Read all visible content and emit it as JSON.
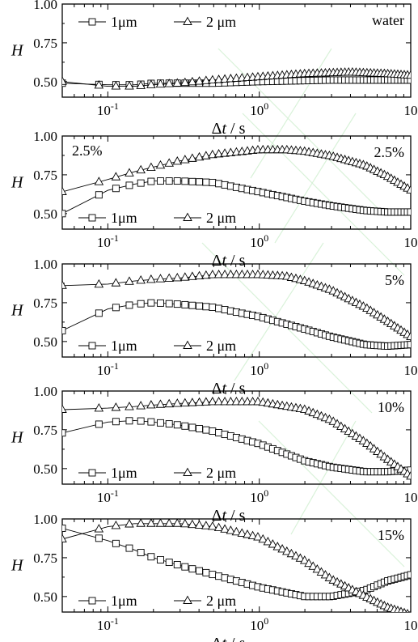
{
  "chart_data": [
    {
      "type": "scatter",
      "xscale": "log",
      "xlim": [
        0.05,
        10
      ],
      "ylim": [
        0.4,
        1.0
      ],
      "xlabel": "Δt / s",
      "ylabel": "H",
      "x_ticks": [
        "10-1",
        "100",
        "10"
      ],
      "y_ticks": [
        "0.50",
        "0.75",
        "1.00"
      ],
      "tags": [
        "water"
      ],
      "legend_position": "top-left",
      "legend_line": "top",
      "series": [
        {
          "name": "1μm",
          "marker": "square",
          "points": [
            [
              0.05,
              0.49
            ],
            [
              0.1,
              0.48
            ],
            [
              0.15,
              0.48
            ],
            [
              0.2,
              0.49
            ],
            [
              0.5,
              0.49
            ],
            [
              1,
              0.5
            ],
            [
              3,
              0.51
            ],
            [
              10,
              0.51
            ]
          ]
        },
        {
          "name": "2 μm",
          "marker": "triangle",
          "points": [
            [
              0.05,
              0.5
            ],
            [
              0.1,
              0.47
            ],
            [
              0.15,
              0.47
            ],
            [
              0.2,
              0.48
            ],
            [
              0.3,
              0.49
            ],
            [
              0.5,
              0.51
            ],
            [
              1,
              0.53
            ],
            [
              2,
              0.55
            ],
            [
              4,
              0.56
            ],
            [
              7,
              0.55
            ],
            [
              10,
              0.54
            ]
          ]
        }
      ]
    },
    {
      "type": "scatter",
      "xscale": "log",
      "xlim": [
        0.05,
        10
      ],
      "ylim": [
        0.4,
        1.0
      ],
      "xlabel": "Δt / s",
      "ylabel": "H",
      "x_ticks": [
        "10-1",
        "100",
        "10"
      ],
      "y_ticks": [
        "0.50",
        "0.75",
        "1.00"
      ],
      "tags": [
        "2.5%",
        "2.5%"
      ],
      "legend_position": "bottom-left",
      "legend_line": "bottom",
      "series": [
        {
          "name": "1μm",
          "marker": "square",
          "points": [
            [
              0.05,
              0.5
            ],
            [
              0.1,
              0.65
            ],
            [
              0.15,
              0.69
            ],
            [
              0.2,
              0.71
            ],
            [
              0.3,
              0.71
            ],
            [
              0.5,
              0.7
            ],
            [
              0.7,
              0.67
            ],
            [
              1,
              0.64
            ],
            [
              2,
              0.58
            ],
            [
              3,
              0.55
            ],
            [
              5,
              0.52
            ],
            [
              7,
              0.51
            ],
            [
              10,
              0.51
            ]
          ]
        },
        {
          "name": "2 μm",
          "marker": "triangle",
          "points": [
            [
              0.05,
              0.64
            ],
            [
              0.1,
              0.72
            ],
            [
              0.15,
              0.77
            ],
            [
              0.2,
              0.8
            ],
            [
              0.3,
              0.84
            ],
            [
              0.5,
              0.88
            ],
            [
              0.8,
              0.9
            ],
            [
              1,
              0.91
            ],
            [
              1.5,
              0.91
            ],
            [
              2,
              0.9
            ],
            [
              3,
              0.87
            ],
            [
              5,
              0.81
            ],
            [
              7,
              0.74
            ],
            [
              10,
              0.65
            ]
          ]
        }
      ]
    },
    {
      "type": "scatter",
      "xscale": "log",
      "xlim": [
        0.05,
        10
      ],
      "ylim": [
        0.4,
        1.0
      ],
      "xlabel": "Δt / s",
      "ylabel": "H",
      "x_ticks": [
        "10-1",
        "100",
        "10"
      ],
      "y_ticks": [
        "0.50",
        "0.75",
        "1.00"
      ],
      "tags": [
        "5%"
      ],
      "legend_position": "bottom-left",
      "legend_line": "bottom",
      "series": [
        {
          "name": "1μm",
          "marker": "square",
          "points": [
            [
              0.05,
              0.57
            ],
            [
              0.1,
              0.71
            ],
            [
              0.15,
              0.74
            ],
            [
              0.2,
              0.75
            ],
            [
              0.3,
              0.74
            ],
            [
              0.5,
              0.72
            ],
            [
              0.7,
              0.69
            ],
            [
              1,
              0.66
            ],
            [
              2,
              0.58
            ],
            [
              3,
              0.53
            ],
            [
              5,
              0.48
            ],
            [
              7,
              0.47
            ],
            [
              10,
              0.48
            ]
          ]
        },
        {
          "name": "2 μm",
          "marker": "triangle",
          "points": [
            [
              0.05,
              0.86
            ],
            [
              0.1,
              0.87
            ],
            [
              0.15,
              0.89
            ],
            [
              0.2,
              0.9
            ],
            [
              0.3,
              0.91
            ],
            [
              0.5,
              0.93
            ],
            [
              1,
              0.93
            ],
            [
              1.5,
              0.92
            ],
            [
              2,
              0.89
            ],
            [
              3,
              0.83
            ],
            [
              5,
              0.72
            ],
            [
              7,
              0.63
            ],
            [
              10,
              0.53
            ]
          ]
        }
      ]
    },
    {
      "type": "scatter",
      "xscale": "log",
      "xlim": [
        0.05,
        10
      ],
      "ylim": [
        0.4,
        1.0
      ],
      "xlabel": "Δt / s",
      "ylabel": "H",
      "x_ticks": [
        "10-1",
        "100",
        "10"
      ],
      "y_ticks": [
        "0.50",
        "0.75",
        "1.00"
      ],
      "tags": [
        "10%"
      ],
      "legend_position": "bottom-left",
      "legend_line": "bottom",
      "series": [
        {
          "name": "1μm",
          "marker": "square",
          "points": [
            [
              0.05,
              0.73
            ],
            [
              0.1,
              0.8
            ],
            [
              0.15,
              0.81
            ],
            [
              0.2,
              0.8
            ],
            [
              0.3,
              0.78
            ],
            [
              0.5,
              0.74
            ],
            [
              1,
              0.66
            ],
            [
              2,
              0.55
            ],
            [
              3,
              0.51
            ],
            [
              5,
              0.48
            ],
            [
              7,
              0.48
            ],
            [
              10,
              0.49
            ]
          ]
        },
        {
          "name": "2 μm",
          "marker": "triangle",
          "points": [
            [
              0.05,
              0.88
            ],
            [
              0.1,
              0.89
            ],
            [
              0.15,
              0.9
            ],
            [
              0.2,
              0.91
            ],
            [
              0.3,
              0.92
            ],
            [
              0.5,
              0.93
            ],
            [
              1,
              0.93
            ],
            [
              2,
              0.88
            ],
            [
              3,
              0.81
            ],
            [
              5,
              0.67
            ],
            [
              7,
              0.56
            ],
            [
              10,
              0.45
            ]
          ]
        }
      ]
    },
    {
      "type": "scatter",
      "xscale": "log",
      "xlim": [
        0.05,
        10
      ],
      "ylim": [
        0.4,
        1.0
      ],
      "xlabel": "Δt / s",
      "ylabel": "H",
      "x_ticks": [
        "10-1",
        "100",
        "10"
      ],
      "y_ticks": [
        "0.50",
        "0.75",
        "1.00"
      ],
      "tags": [
        "15%"
      ],
      "legend_position": "bottom-left",
      "legend_line": "bottom",
      "series": [
        {
          "name": "1μm",
          "marker": "square",
          "points": [
            [
              0.05,
              0.94
            ],
            [
              0.1,
              0.86
            ],
            [
              0.15,
              0.8
            ],
            [
              0.2,
              0.75
            ],
            [
              0.3,
              0.7
            ],
            [
              0.5,
              0.64
            ],
            [
              1,
              0.56
            ],
            [
              2,
              0.5
            ],
            [
              3,
              0.5
            ],
            [
              5,
              0.54
            ],
            [
              7,
              0.6
            ],
            [
              10,
              0.64
            ]
          ]
        },
        {
          "name": "2 μm",
          "marker": "triangle",
          "points": [
            [
              0.05,
              0.87
            ],
            [
              0.1,
              0.95
            ],
            [
              0.15,
              0.97
            ],
            [
              0.2,
              0.97
            ],
            [
              0.3,
              0.97
            ],
            [
              0.5,
              0.95
            ],
            [
              1,
              0.88
            ],
            [
              2,
              0.73
            ],
            [
              3,
              0.61
            ],
            [
              5,
              0.5
            ],
            [
              7,
              0.43
            ],
            [
              10,
              0.38
            ]
          ]
        }
      ]
    }
  ]
}
